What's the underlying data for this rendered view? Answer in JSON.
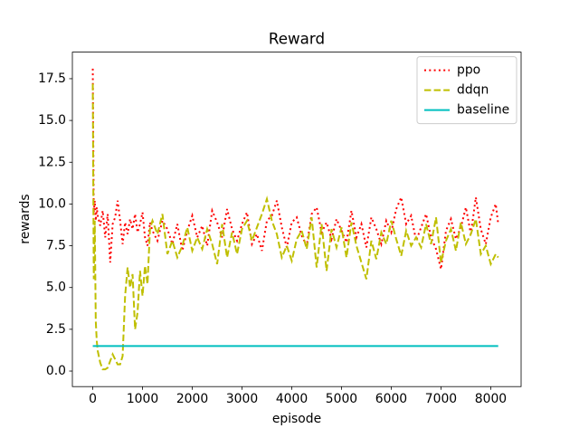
{
  "chart_data": {
    "type": "line",
    "title": "Reward",
    "x_label": "episode",
    "y_label": "rewards",
    "x": [
      0,
      20,
      40,
      60,
      80,
      100,
      150,
      200,
      250,
      300,
      350,
      400,
      450,
      500,
      550,
      600,
      650,
      700,
      750,
      800,
      850,
      900,
      950,
      1000,
      1050,
      1100,
      1150,
      1200,
      1300,
      1400,
      1500,
      1600,
      1700,
      1800,
      1900,
      2000,
      2100,
      2200,
      2300,
      2400,
      2500,
      2600,
      2700,
      2800,
      2900,
      3000,
      3100,
      3200,
      3300,
      3400,
      3500,
      3600,
      3700,
      3800,
      3900,
      4000,
      4100,
      4200,
      4300,
      4400,
      4500,
      4600,
      4700,
      4800,
      4900,
      5000,
      5100,
      5200,
      5300,
      5400,
      5500,
      5600,
      5700,
      5800,
      5900,
      6000,
      6100,
      6200,
      6300,
      6400,
      6500,
      6600,
      6700,
      6800,
      6900,
      7000,
      7100,
      7200,
      7300,
      7400,
      7500,
      7600,
      7700,
      7800,
      7900,
      8000,
      8100,
      8150
    ],
    "series": [
      {
        "name": "ppo",
        "color": "#ff0000",
        "linestyle": "dotted",
        "values": [
          18.1,
          9.5,
          10.2,
          9.0,
          9.8,
          9.3,
          8.7,
          9.6,
          8.0,
          9.4,
          6.5,
          8.8,
          9.2,
          10.2,
          9.0,
          7.6,
          8.9,
          8.2,
          9.1,
          8.5,
          9.4,
          8.3,
          8.8,
          9.5,
          8.0,
          7.5,
          8.9,
          8.4,
          7.8,
          9.0,
          8.5,
          7.6,
          8.8,
          7.2,
          8.4,
          9.3,
          8.0,
          8.7,
          7.5,
          9.6,
          8.9,
          8.0,
          9.7,
          8.5,
          7.8,
          8.8,
          9.5,
          7.6,
          8.2,
          7.2,
          9.0,
          9.3,
          10.2,
          8.6,
          7.4,
          8.9,
          9.2,
          8.1,
          7.5,
          9.4,
          9.8,
          8.3,
          8.9,
          7.9,
          9.1,
          8.4,
          7.7,
          9.6,
          8.0,
          8.8,
          7.4,
          9.2,
          8.5,
          7.6,
          9.0,
          8.3,
          9.7,
          10.4,
          8.8,
          9.3,
          7.8,
          8.6,
          9.4,
          8.0,
          7.3,
          6.1,
          8.4,
          9.1,
          7.9,
          8.6,
          9.8,
          8.2,
          10.4,
          8.5,
          7.6,
          9.2,
          10.0,
          8.8
        ]
      },
      {
        "name": "ddqn",
        "color": "#bfbf00",
        "linestyle": "dashed",
        "values": [
          17.2,
          5.5,
          9.0,
          3.0,
          1.8,
          1.2,
          0.5,
          0.1,
          0.1,
          0.2,
          0.6,
          1.0,
          0.7,
          0.4,
          0.4,
          0.9,
          4.5,
          6.2,
          5.0,
          5.8,
          2.5,
          3.5,
          6.0,
          4.5,
          6.3,
          5.2,
          8.5,
          9.0,
          8.2,
          9.4,
          7.0,
          7.8,
          6.8,
          7.5,
          8.6,
          7.2,
          8.0,
          7.3,
          8.5,
          7.6,
          6.4,
          8.8,
          6.8,
          8.3,
          7.0,
          8.5,
          9.0,
          7.8,
          8.6,
          9.4,
          10.3,
          9.0,
          8.2,
          6.8,
          7.5,
          6.6,
          7.9,
          8.4,
          7.3,
          9.2,
          6.2,
          8.8,
          6.0,
          8.5,
          7.4,
          8.6,
          6.8,
          8.9,
          7.5,
          6.5,
          5.5,
          7.8,
          6.7,
          8.3,
          7.6,
          9.0,
          7.9,
          6.9,
          8.4,
          7.5,
          8.0,
          7.4,
          8.8,
          7.6,
          9.2,
          6.5,
          7.8,
          8.5,
          7.2,
          8.9,
          7.6,
          8.2,
          9.1,
          7.0,
          7.5,
          6.4,
          7.0,
          6.8
        ]
      },
      {
        "name": "baseline",
        "color": "#00bfbf",
        "linestyle": "solid",
        "values": [
          1.5,
          1.5,
          1.5,
          1.5,
          1.5,
          1.5,
          1.5,
          1.5,
          1.5,
          1.5,
          1.5,
          1.5,
          1.5,
          1.5,
          1.5,
          1.5,
          1.5,
          1.5,
          1.5,
          1.5,
          1.5,
          1.5,
          1.5,
          1.5,
          1.5,
          1.5,
          1.5,
          1.5,
          1.5,
          1.5,
          1.5,
          1.5,
          1.5,
          1.5,
          1.5,
          1.5,
          1.5,
          1.5,
          1.5,
          1.5,
          1.5,
          1.5,
          1.5,
          1.5,
          1.5,
          1.5,
          1.5,
          1.5,
          1.5,
          1.5,
          1.5,
          1.5,
          1.5,
          1.5,
          1.5,
          1.5,
          1.5,
          1.5,
          1.5,
          1.5,
          1.5,
          1.5,
          1.5,
          1.5,
          1.5,
          1.5,
          1.5,
          1.5,
          1.5,
          1.5,
          1.5,
          1.5,
          1.5,
          1.5,
          1.5,
          1.5,
          1.5,
          1.5,
          1.5,
          1.5,
          1.5,
          1.5,
          1.5,
          1.5,
          1.5,
          1.5,
          1.5,
          1.5,
          1.5,
          1.5,
          1.5,
          1.5,
          1.5,
          1.5,
          1.5,
          1.5,
          1.5,
          1.5
        ]
      }
    ],
    "xlim": [
      -410,
      8610
    ],
    "ylim": [
      -0.93,
      19.09
    ],
    "xticks": [
      0,
      1000,
      2000,
      3000,
      4000,
      5000,
      6000,
      7000,
      8000
    ],
    "yticks": [
      {
        "value": 0,
        "label": "0.0"
      },
      2.5,
      {
        "value": 5,
        "label": "5.0"
      },
      7.5,
      {
        "value": 10,
        "label": "10.0"
      },
      12.5,
      {
        "value": 15,
        "label": "15.0"
      },
      17.5
    ],
    "grid": false,
    "legend": "upper right"
  }
}
